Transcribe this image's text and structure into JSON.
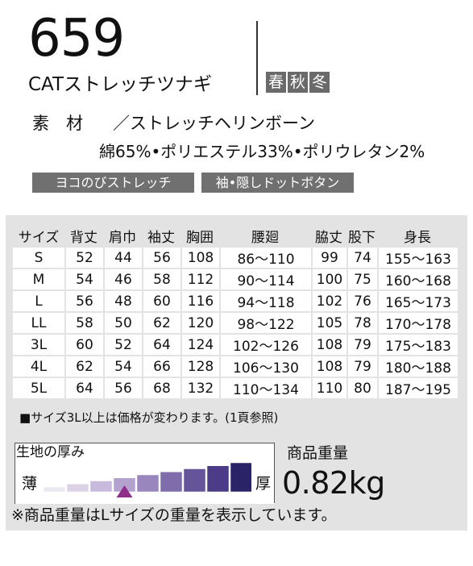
{
  "header": {
    "model_number": "659",
    "product_name": "CATストレッチツナギ",
    "seasons": [
      "春",
      "秋",
      "冬"
    ]
  },
  "material": {
    "label": "素　材",
    "value": "／ストレッチヘリンボーン",
    "composition": "綿65%•ポリエステル33%•ポリウレタン2%"
  },
  "features": [
    "ヨコのびストレッチ",
    "袖•隠しドットボタン"
  ],
  "size_table": {
    "headers": [
      "サイズ",
      "背丈",
      "肩巾",
      "袖丈",
      "胸囲",
      "腰廻",
      "脇丈",
      "股下",
      "身長"
    ],
    "rows": [
      [
        "S",
        "52",
        "44",
        "56",
        "108",
        "86〜110",
        "99",
        "74",
        "155〜163"
      ],
      [
        "M",
        "54",
        "46",
        "58",
        "112",
        "90〜114",
        "100",
        "75",
        "160〜168"
      ],
      [
        "L",
        "56",
        "48",
        "60",
        "116",
        "94〜118",
        "102",
        "76",
        "165〜173"
      ],
      [
        "LL",
        "58",
        "50",
        "62",
        "120",
        "98〜122",
        "105",
        "78",
        "170〜178"
      ],
      [
        "3L",
        "60",
        "52",
        "64",
        "124",
        "102〜126",
        "108",
        "79",
        "175〜183"
      ],
      [
        "4L",
        "62",
        "54",
        "66",
        "128",
        "106〜130",
        "108",
        "79",
        "180〜188"
      ],
      [
        "5L",
        "64",
        "56",
        "68",
        "132",
        "110〜134",
        "110",
        "80",
        "187〜195"
      ]
    ],
    "note": "■サイズ3L以上は価格が変わります。(1頁参照)"
  },
  "fabric_thickness": {
    "title": "生地の厚み",
    "thin_label": "薄",
    "thick_label": "厚",
    "levels": 9,
    "selected_level": 4,
    "colors": [
      "#ece8f1",
      "#dbd2e6",
      "#c8badc",
      "#b3a2cf",
      "#9886bd",
      "#7f6cab",
      "#66549a",
      "#4c3c88",
      "#2a2368"
    ],
    "marker_color": "#8e2d8a"
  },
  "product_weight": {
    "title": "商品重量",
    "value": "0.82kg"
  },
  "footer_note": "※商品重量はLサイズの重量を表示しています。"
}
